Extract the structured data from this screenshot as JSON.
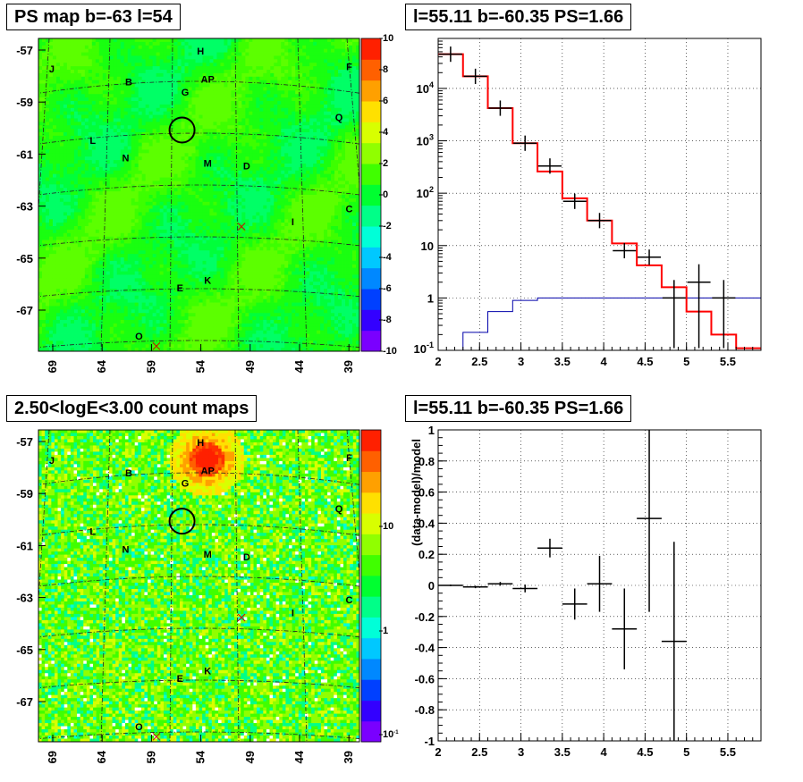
{
  "titles": {
    "top_left": "PS map b=-63 l=54",
    "top_right": "l=55.11 b=-60.35 PS=1.66",
    "bottom_left": "2.50<logE<3.00 count maps",
    "bottom_right": "l=55.11 b=-60.35 PS=1.66"
  },
  "chart_data": [
    {
      "type": "heatmap",
      "title": "PS map b=-63 l=54",
      "x_ticks": [
        "69",
        "64",
        "59",
        "54",
        "49",
        "44",
        "39"
      ],
      "y_ticks": [
        "-57",
        "-59",
        "-61",
        "-63",
        "-65",
        "-67"
      ],
      "colorbar_ticks": [
        "10",
        "8",
        "6",
        "4",
        "2",
        "0",
        "-2",
        "-4",
        "-6",
        "-8",
        "-10"
      ],
      "colorbar_range": [
        -10,
        10
      ],
      "sources": [
        {
          "label": "H",
          "l": 54.0,
          "b": -56.7
        },
        {
          "label": "J",
          "l": 68.5,
          "b": -57.4
        },
        {
          "label": "F",
          "l": 39.5,
          "b": -57.3
        },
        {
          "label": "AP",
          "l": 53.3,
          "b": -57.8
        },
        {
          "label": "B",
          "l": 61.0,
          "b": -57.9
        },
        {
          "label": "G",
          "l": 55.5,
          "b": -58.3
        },
        {
          "label": "Q",
          "l": 40.5,
          "b": -59.3
        },
        {
          "label": "L",
          "l": 64.5,
          "b": -60.2
        },
        {
          "label": "N",
          "l": 61.3,
          "b": -60.9
        },
        {
          "label": "M",
          "l": 53.3,
          "b": -61.1
        },
        {
          "label": "D",
          "l": 49.5,
          "b": -61.2
        },
        {
          "label": "C",
          "l": 39.5,
          "b": -62.9
        },
        {
          "label": "I",
          "l": 45.0,
          "b": -63.4
        },
        {
          "label": "K",
          "l": 53.3,
          "b": -65.7
        },
        {
          "label": "E",
          "l": 56.0,
          "b": -66.0
        },
        {
          "label": "O",
          "l": 60.0,
          "b": -67.9
        }
      ],
      "markers": [
        {
          "type": "circle",
          "l": 55.8,
          "b": -59.8
        },
        {
          "type": "cross",
          "l": 50.0,
          "b": -63.6
        },
        {
          "type": "cross",
          "l": 58.3,
          "b": -68.3
        }
      ]
    },
    {
      "type": "line",
      "title": "l=55.11 b=-60.35 PS=1.66",
      "x_ticks": [
        "2",
        "2.5",
        "3",
        "3.5",
        "4",
        "4.5",
        "5",
        "5.5"
      ],
      "xlim": [
        2,
        5.9
      ],
      "y_log": true,
      "ylim": [
        0.1,
        90000
      ],
      "y_ticks": [
        "10^4",
        "10^3",
        "10^2",
        "10",
        "1",
        "10^-1"
      ],
      "bin_edges": [
        2,
        2.3,
        2.6,
        2.9,
        3.2,
        3.5,
        3.8,
        4.1,
        4.4,
        4.7,
        5.0,
        5.3,
        5.6,
        5.9
      ],
      "series": [
        {
          "values": [
            45000,
            17000,
            4200,
            900,
            260,
            80,
            30,
            11,
            4.2,
            1.6,
            0.55,
            0.2,
            0.11
          ]
        },
        {
          "values": [
            0.1,
            0.22,
            0.55,
            0.9,
            1.0,
            1.0,
            1.0,
            1.0,
            1.0,
            1.0,
            1.0,
            1.0,
            1.0
          ]
        }
      ],
      "data_points": [
        {
          "x": 2.15,
          "y": 45000
        },
        {
          "x": 2.45,
          "y": 17000
        },
        {
          "x": 2.75,
          "y": 4200
        },
        {
          "x": 3.05,
          "y": 900
        },
        {
          "x": 3.35,
          "y": 330
        },
        {
          "x": 3.65,
          "y": 70
        },
        {
          "x": 3.95,
          "y": 30
        },
        {
          "x": 4.25,
          "y": 8
        },
        {
          "x": 4.55,
          "y": 6
        },
        {
          "x": 4.85,
          "y": 1.0
        },
        {
          "x": 5.15,
          "y": 2.0
        },
        {
          "x": 5.45,
          "y": 1.0
        }
      ]
    },
    {
      "type": "heatmap",
      "title": "2.50<logE<3.00 count maps",
      "x_ticks": [
        "69",
        "64",
        "59",
        "54",
        "49",
        "44",
        "39"
      ],
      "y_ticks": [
        "-57",
        "-59",
        "-61",
        "-63",
        "-65",
        "-67"
      ],
      "colorbar_ticks": [
        "10",
        "1",
        "10^-1"
      ],
      "colorbar_log": true
    },
    {
      "type": "scatter",
      "title": "l=55.11 b=-60.35 PS=1.66",
      "ylabel": "(data-model)/model",
      "x_ticks": [
        "2",
        "2.5",
        "3",
        "3.5",
        "4",
        "4.5",
        "5",
        "5.5"
      ],
      "y_ticks": [
        "1",
        "0.8",
        "0.6",
        "0.4",
        "0.2",
        "0",
        "-0.2",
        "-0.4",
        "-0.6",
        "-0.8",
        "-1"
      ],
      "xlim": [
        2,
        5.9
      ],
      "ylim": [
        -1,
        1
      ],
      "points": [
        {
          "x": 2.15,
          "y": 0.0,
          "err": 0.005,
          "xerr": 0.15
        },
        {
          "x": 2.45,
          "y": -0.01,
          "err": 0.008,
          "xerr": 0.15
        },
        {
          "x": 2.75,
          "y": 0.01,
          "err": 0.012,
          "xerr": 0.15
        },
        {
          "x": 3.05,
          "y": -0.02,
          "err": 0.025,
          "xerr": 0.15
        },
        {
          "x": 3.35,
          "y": 0.24,
          "err": 0.06,
          "xerr": 0.15
        },
        {
          "x": 3.65,
          "y": -0.12,
          "err": 0.1,
          "xerr": 0.15
        },
        {
          "x": 3.95,
          "y": 0.01,
          "err": 0.18,
          "xerr": 0.15
        },
        {
          "x": 4.25,
          "y": -0.28,
          "err": 0.26,
          "xerr": 0.15
        },
        {
          "x": 4.55,
          "y": 0.43,
          "err": 0.6,
          "xerr": 0.15
        },
        {
          "x": 4.85,
          "y": -0.36,
          "err": 0.64,
          "xerr": 0.15
        }
      ]
    }
  ]
}
